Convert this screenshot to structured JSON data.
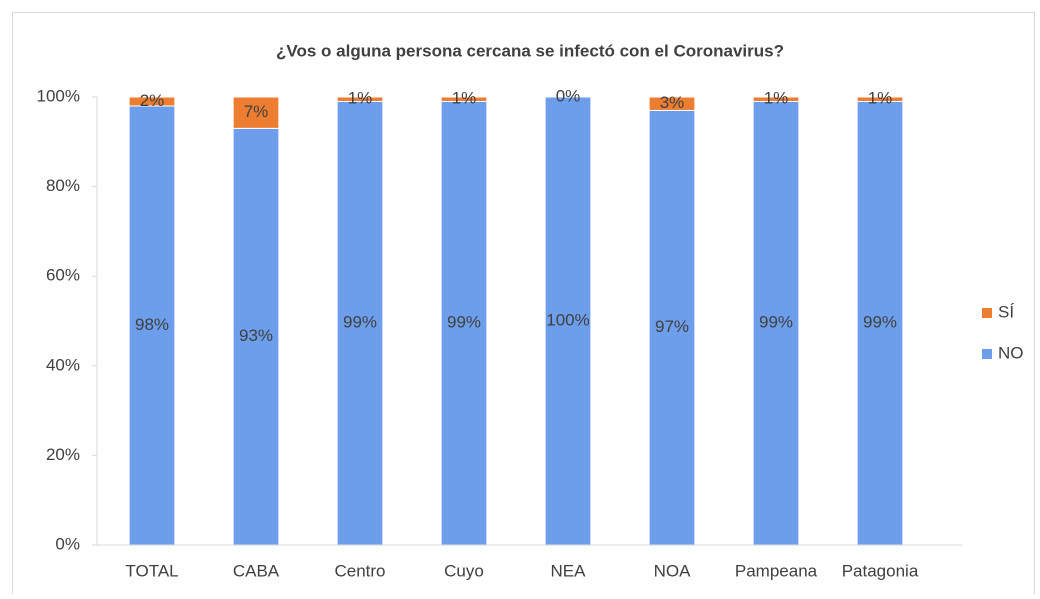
{
  "chart_data": {
    "type": "stacked_bar",
    "title": "¿Vos o alguna persona cercana se infectó con el Coronavirus?",
    "categories": [
      "TOTAL",
      "CABA",
      "Centro",
      "Cuyo",
      "NEA",
      "NOA",
      "Pampeana",
      "Patagonia"
    ],
    "series": [
      {
        "name": "NO",
        "color": "#6d9eeb",
        "values": [
          98,
          93,
          99,
          99,
          100,
          97,
          99,
          99
        ],
        "value_labels": [
          "98%",
          "93%",
          "99%",
          "99%",
          "100%",
          "97%",
          "99%",
          "99%"
        ]
      },
      {
        "name": "SÍ",
        "color": "#ed7d31",
        "values": [
          2,
          7,
          1,
          1,
          0,
          3,
          1,
          1
        ],
        "value_labels": [
          "2%",
          "7%",
          "1%",
          "1%",
          "0%",
          "3%",
          "1%",
          "1%"
        ]
      }
    ],
    "ylim": [
      0,
      100
    ],
    "yticks": [
      {
        "value": 0,
        "label": "0%"
      },
      {
        "value": 20,
        "label": "20%"
      },
      {
        "value": 40,
        "label": "40%"
      },
      {
        "value": 60,
        "label": "60%"
      },
      {
        "value": 80,
        "label": "80%"
      },
      {
        "value": 100,
        "label": "100%"
      }
    ],
    "grid": false,
    "legend": "right"
  }
}
